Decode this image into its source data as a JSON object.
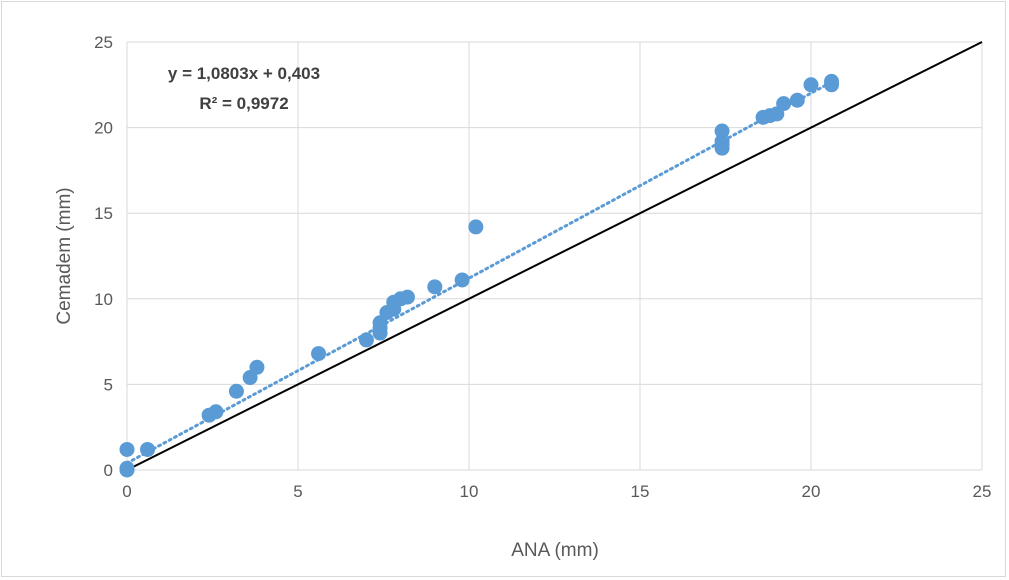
{
  "chart_data": {
    "type": "scatter",
    "xlabel": "ANA (mm)",
    "ylabel": "Cemadem (mm)",
    "xlim": [
      0,
      25
    ],
    "ylim": [
      0,
      25
    ],
    "x_ticks": [
      "0",
      "5",
      "10",
      "15",
      "20",
      "25"
    ],
    "y_ticks": [
      "0",
      "5",
      "10",
      "15",
      "20",
      "25"
    ],
    "grid": true,
    "legend": "none",
    "colors": {
      "points": "#5b9bd5",
      "trendline": "#5b9bd5",
      "reference_line": "#000000",
      "grid": "#d9d9d9"
    },
    "series": [
      {
        "points": [
          [
            0,
            0
          ],
          [
            0,
            0.1
          ],
          [
            0,
            1.2
          ],
          [
            0.6,
            1.2
          ],
          [
            2.4,
            3.2
          ],
          [
            2.6,
            3.4
          ],
          [
            3.2,
            4.6
          ],
          [
            3.6,
            5.4
          ],
          [
            3.8,
            6.0
          ],
          [
            5.6,
            6.8
          ],
          [
            7.0,
            7.6
          ],
          [
            7.4,
            8.0
          ],
          [
            7.4,
            8.3
          ],
          [
            7.4,
            8.6
          ],
          [
            7.6,
            9.2
          ],
          [
            7.8,
            9.4
          ],
          [
            7.8,
            9.8
          ],
          [
            8.0,
            10.0
          ],
          [
            8.2,
            10.1
          ],
          [
            9.0,
            10.7
          ],
          [
            9.8,
            11.1
          ],
          [
            10.2,
            14.2
          ],
          [
            17.4,
            18.8
          ],
          [
            17.4,
            19.0
          ],
          [
            17.4,
            19.2
          ],
          [
            17.4,
            19.8
          ],
          [
            18.6,
            20.6
          ],
          [
            18.8,
            20.7
          ],
          [
            19.0,
            20.8
          ],
          [
            19.2,
            21.4
          ],
          [
            19.6,
            21.6
          ],
          [
            20.0,
            22.5
          ],
          [
            20.6,
            22.5
          ],
          [
            20.6,
            22.7
          ]
        ]
      }
    ],
    "trendline": {
      "slope": 1.0803,
      "intercept": 0.403,
      "x_range": [
        0,
        20.6
      ],
      "style": "dotted"
    },
    "reference_line": {
      "from": [
        0,
        0
      ],
      "to": [
        25,
        25
      ]
    },
    "annotations": {
      "equation": "y = 1,0803x + 0,403",
      "r_squared": "R² = 0,9972"
    }
  }
}
